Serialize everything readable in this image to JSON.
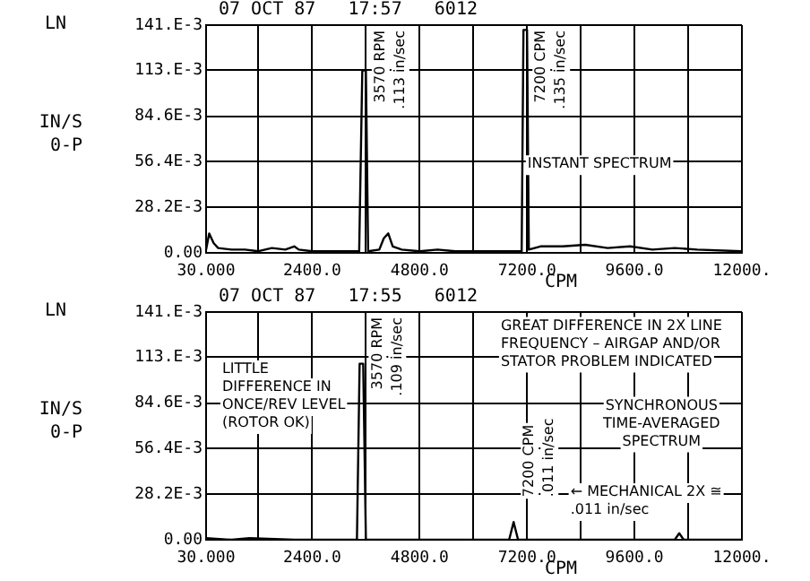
{
  "chart_data": [
    {
      "type": "line",
      "title": "07 OCT 87   17:57   6012",
      "xlabel": "CPM",
      "ylabel": "IN/S 0-P",
      "marker": "none",
      "grid": true,
      "xlim": [
        30,
        12000
      ],
      "xticks": [
        {
          "value": 30,
          "label": "30.000"
        },
        {
          "value": 1200,
          "label": null
        },
        {
          "value": 2400,
          "label": "2400.0"
        },
        {
          "value": 3600,
          "label": null
        },
        {
          "value": 4800,
          "label": "4800.0"
        },
        {
          "value": 6000,
          "label": null
        },
        {
          "value": 7200,
          "label": "7200.0"
        },
        {
          "value": 8400,
          "label": null
        },
        {
          "value": 9600,
          "label": "9600.0"
        },
        {
          "value": 10800,
          "label": null
        },
        {
          "value": 12000,
          "label": "12000."
        }
      ],
      "ylim": [
        0,
        0.141
      ],
      "yticks": [
        {
          "value": 0,
          "label": "0.00"
        },
        {
          "value": 0.0282,
          "label": "28.2E-3"
        },
        {
          "value": 0.0564,
          "label": "56.4E-3"
        },
        {
          "value": 0.0846,
          "label": "84.6E-3"
        },
        {
          "value": 0.113,
          "label": "113.E-3"
        },
        {
          "value": 0.141,
          "label": "141.E-3"
        }
      ],
      "x": [
        30,
        100,
        200,
        300,
        600,
        900,
        1200,
        1500,
        1800,
        2000,
        2100,
        2400,
        3000,
        3450,
        3520,
        3600,
        3650,
        3900,
        4000,
        4100,
        4200,
        4400,
        4800,
        5200,
        5600,
        6000,
        6600,
        7080,
        7120,
        7200,
        7240,
        7500,
        8000,
        8500,
        9000,
        9500,
        10000,
        10500,
        11000,
        12000
      ],
      "series": [
        {
          "color": "#000000",
          "values": [
            0.002,
            0.012,
            0.006,
            0.003,
            0.002,
            0.002,
            0.001,
            0.003,
            0.002,
            0.004,
            0.002,
            0.001,
            0.001,
            0.001,
            0.113,
            0.113,
            0.001,
            0.002,
            0.009,
            0.012,
            0.004,
            0.002,
            0.001,
            0.002,
            0.001,
            0.001,
            0.001,
            0.001,
            0.138,
            0.138,
            0.002,
            0.004,
            0.004,
            0.005,
            0.003,
            0.004,
            0.002,
            0.003,
            0.002,
            0.001
          ]
        }
      ],
      "annotations": [
        "LN",
        "INSTANT SPECTRUM",
        {
          "text": "3570 RPM",
          "x": 3570,
          "y": 0.113
        },
        {
          "text": ".113 in/sec",
          "x": 3570,
          "y": 0.113
        },
        {
          "text": "7200 CPM",
          "x": 7160,
          "y": 0.138
        },
        {
          "text": ".135 in/sec",
          "x": 7160,
          "y": 0.138
        }
      ]
    },
    {
      "type": "line",
      "title": "07 OCT 87   17:55   6012",
      "xlabel": "CPM",
      "ylabel": "IN/S 0-P",
      "marker": "none",
      "grid": true,
      "xlim": [
        30,
        12000
      ],
      "xticks": [
        {
          "value": 30,
          "label": "30.000"
        },
        {
          "value": 1200,
          "label": null
        },
        {
          "value": 2400,
          "label": "2400.0"
        },
        {
          "value": 3600,
          "label": null
        },
        {
          "value": 4800,
          "label": "4800.0"
        },
        {
          "value": 6000,
          "label": null
        },
        {
          "value": 7200,
          "label": "7200.0"
        },
        {
          "value": 8400,
          "label": null
        },
        {
          "value": 9600,
          "label": "9600.0"
        },
        {
          "value": 10800,
          "label": null
        },
        {
          "value": 12000,
          "label": "12000."
        }
      ],
      "ylim": [
        0,
        0.141
      ],
      "yticks": [
        {
          "value": 0,
          "label": "0.00"
        },
        {
          "value": 0.0282,
          "label": "28.2E-3"
        },
        {
          "value": 0.0564,
          "label": "56.4E-3"
        },
        {
          "value": 0.0846,
          "label": "84.6E-3"
        },
        {
          "value": 0.113,
          "label": "113.E-3"
        },
        {
          "value": 0.141,
          "label": "141.E-3"
        }
      ],
      "x": [
        30,
        600,
        1000,
        2000,
        3400,
        3460,
        3540,
        3600,
        6800,
        6900,
        7000,
        10500,
        10600,
        10700,
        12000
      ],
      "series": [
        {
          "color": "#000000",
          "values": [
            0.001,
            0.0,
            0.001,
            0.0,
            0.0,
            0.109,
            0.109,
            0.0,
            0.0,
            0.011,
            0.0,
            0.0,
            0.004,
            0.0,
            0.0
          ]
        }
      ],
      "annotations": [
        "LN",
        "LITTLE DIFFERENCE IN ONCE/REV LEVEL (ROTOR OK)",
        "GREAT DIFFERENCE IN 2X LINE FREQUENCY – AIRGAP AND/OR STATOR PROBLEM INDICATED",
        "SYNCHRONOUS TIME-AVERAGED SPECTRUM",
        "← MECHANICAL 2X ≅ .011 in/sec",
        {
          "text": "3570 RPM",
          "x": 3500,
          "y": 0.109
        },
        {
          "text": ".109 in/sec",
          "x": 3500,
          "y": 0.109
        },
        {
          "text": "7200 CPM",
          "x": 6900,
          "y": 0.011
        },
        {
          "text": ".011 in/sec",
          "x": 6900,
          "y": 0.011
        }
      ]
    }
  ]
}
